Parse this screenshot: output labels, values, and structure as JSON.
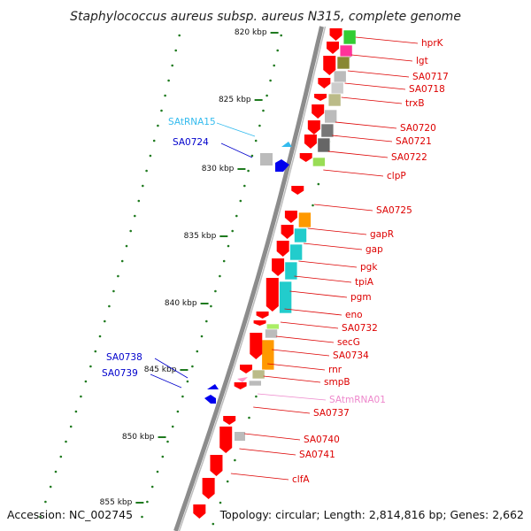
{
  "title": "Staphylococcus aureus subsp. aureus N315, complete genome",
  "footer": {
    "accession": "Accession: NC_002745",
    "topology": "Topology: circular; Length: 2,814,816 bp; Genes: 2,662"
  },
  "colors": {
    "backbone": "#8c8c8c",
    "forward_strand": "#ff0000",
    "leftside_label": "#0000cc",
    "trna_label": "#33bbee",
    "tmrna_label": "#ee88cc",
    "kbp_tick": "#1f7a1f"
  },
  "kbp_ticks": [
    {
      "label": "820 kbp"
    },
    {
      "label": "825 kbp"
    },
    {
      "label": "830 kbp"
    },
    {
      "label": "835 kbp"
    },
    {
      "label": "840 kbp"
    },
    {
      "label": "845 kbp"
    },
    {
      "label": "850 kbp"
    },
    {
      "label": "855 kbp"
    }
  ],
  "right_labels": [
    {
      "text": "hprK",
      "color": "#dd0000"
    },
    {
      "text": "lgt",
      "color": "#dd0000"
    },
    {
      "text": "SA0717",
      "color": "#dd0000"
    },
    {
      "text": "SA0718",
      "color": "#dd0000"
    },
    {
      "text": "trxB",
      "color": "#dd0000"
    },
    {
      "text": "SA0720",
      "color": "#dd0000"
    },
    {
      "text": "SA0721",
      "color": "#dd0000"
    },
    {
      "text": "SA0722",
      "color": "#dd0000"
    },
    {
      "text": "clpP",
      "color": "#dd0000"
    },
    {
      "text": "SA0725",
      "color": "#dd0000"
    },
    {
      "text": "gapR",
      "color": "#dd0000"
    },
    {
      "text": "gap",
      "color": "#dd0000"
    },
    {
      "text": "pgk",
      "color": "#dd0000"
    },
    {
      "text": "tpiA",
      "color": "#dd0000"
    },
    {
      "text": "pgm",
      "color": "#dd0000"
    },
    {
      "text": "eno",
      "color": "#dd0000"
    },
    {
      "text": "SA0732",
      "color": "#dd0000"
    },
    {
      "text": "secG",
      "color": "#dd0000"
    },
    {
      "text": "SA0734",
      "color": "#dd0000"
    },
    {
      "text": "rnr",
      "color": "#dd0000"
    },
    {
      "text": "smpB",
      "color": "#dd0000"
    },
    {
      "text": "SAtmRNA01",
      "color": "#ee88cc"
    },
    {
      "text": "SA0737",
      "color": "#dd0000"
    },
    {
      "text": "SA0740",
      "color": "#dd0000"
    },
    {
      "text": "SA0741",
      "color": "#dd0000"
    },
    {
      "text": "clfA",
      "color": "#dd0000"
    }
  ],
  "left_labels": [
    {
      "text": "SAtRNA15",
      "color": "#33bbee"
    },
    {
      "text": "SA0724",
      "color": "#0000cc"
    },
    {
      "text": "SA0738",
      "color": "#0000cc"
    },
    {
      "text": "SA0739",
      "color": "#0000cc"
    }
  ],
  "cog_bars": [
    {
      "color": "#33cc33"
    },
    {
      "color": "#ff3399"
    },
    {
      "color": "#888833"
    },
    {
      "color": "#bbbbbb"
    },
    {
      "color": "#cccccc"
    },
    {
      "color": "#bbbb88"
    },
    {
      "color": "#bbbbbb"
    },
    {
      "color": "#777777"
    },
    {
      "color": "#666666"
    },
    {
      "color": "#99dd55"
    },
    {
      "color": "#ff9900"
    },
    {
      "color": "#22cccc"
    },
    {
      "color": "#22cccc"
    },
    {
      "color": "#22cccc"
    },
    {
      "color": "#22cccc"
    },
    {
      "color": "#aaee66"
    },
    {
      "color": "#bbbbbb"
    },
    {
      "color": "#ff9900"
    },
    {
      "color": "#bbbb88"
    },
    {
      "color": "#bbbbbb"
    }
  ]
}
